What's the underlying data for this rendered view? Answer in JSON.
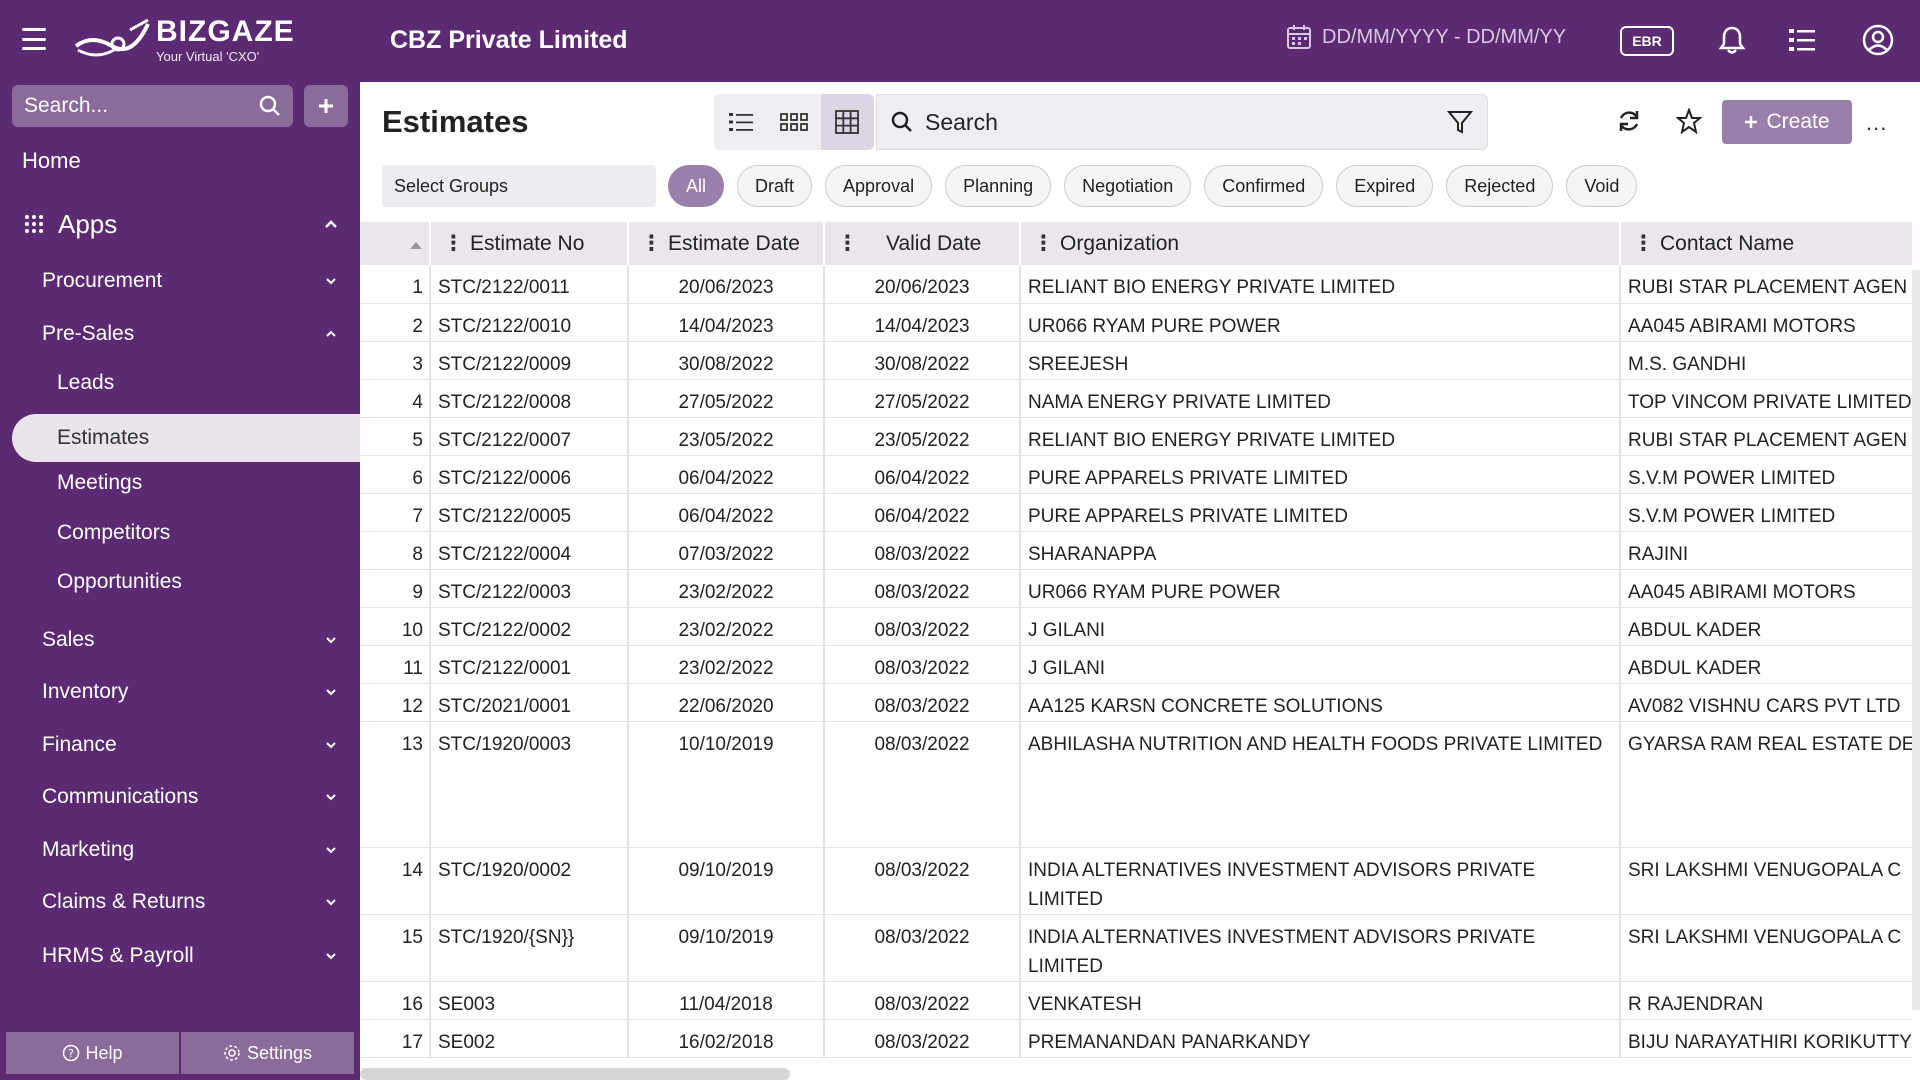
{
  "topbar": {
    "logo_name": "BIZGAZE",
    "logo_tagline": "Your Virtual 'CXO'",
    "company": "CBZ Private Limited",
    "date_placeholder": "DD/MM/YYYY - DD/MM/YY",
    "ebr_label": "EBR",
    "icons": [
      "menu-icon",
      "calendar-icon",
      "bell-icon",
      "list-icon",
      "user-icon"
    ]
  },
  "sidebar": {
    "search_placeholder": "Search...",
    "home": "Home",
    "apps": "Apps",
    "items": [
      {
        "label": "Procurement",
        "expanded": false
      },
      {
        "label": "Pre-Sales",
        "expanded": true
      },
      {
        "label": "Leads"
      },
      {
        "label": "Estimates",
        "selected": true
      },
      {
        "label": "Meetings"
      },
      {
        "label": "Competitors"
      },
      {
        "label": "Opportunities"
      },
      {
        "label": "Sales",
        "expanded": false
      },
      {
        "label": "Inventory",
        "expanded": false
      },
      {
        "label": "Finance",
        "expanded": false
      },
      {
        "label": "Communications",
        "expanded": false
      },
      {
        "label": "Marketing",
        "expanded": false
      },
      {
        "label": "Claims & Returns",
        "expanded": false
      },
      {
        "label": "HRMS & Payroll",
        "expanded": false
      }
    ],
    "help": "Help",
    "settings": "Settings"
  },
  "main": {
    "title": "Estimates",
    "search_placeholder": "Search",
    "create_label": "Create",
    "more_label": "...",
    "select_groups": "Select Groups",
    "filters": [
      "All",
      "Draft",
      "Approval",
      "Planning",
      "Negotiation",
      "Confirmed",
      "Expired",
      "Rejected",
      "Void"
    ],
    "active_filter": "All",
    "columns": [
      "Estimate No",
      "Estimate Date",
      "Valid Date",
      "Organization",
      "Contact Name"
    ],
    "rows": [
      {
        "n": "1",
        "no": "STC/2122/0011",
        "date": "20/06/2023",
        "valid": "20/06/2023",
        "org": "RELIANT BIO ENERGY PRIVATE LIMITED",
        "contact": "RUBI STAR PLACEMENT AGEN"
      },
      {
        "n": "2",
        "no": "STC/2122/0010",
        "date": "14/04/2023",
        "valid": "14/04/2023",
        "org": "UR066 RYAM PURE POWER",
        "contact": "AA045 ABIRAMI MOTORS"
      },
      {
        "n": "3",
        "no": "STC/2122/0009",
        "date": "30/08/2022",
        "valid": "30/08/2022",
        "org": "SREEJESH",
        "contact": "M.S. GANDHI"
      },
      {
        "n": "4",
        "no": "STC/2122/0008",
        "date": "27/05/2022",
        "valid": "27/05/2022",
        "org": "NAMA ENERGY PRIVATE LIMITED",
        "contact": "TOP VINCOM PRIVATE LIMITED"
      },
      {
        "n": "5",
        "no": "STC/2122/0007",
        "date": "23/05/2022",
        "valid": "23/05/2022",
        "org": "RELIANT BIO ENERGY PRIVATE LIMITED",
        "contact": "RUBI STAR PLACEMENT AGEN"
      },
      {
        "n": "6",
        "no": "STC/2122/0006",
        "date": "06/04/2022",
        "valid": "06/04/2022",
        "org": "PURE APPARELS PRIVATE LIMITED",
        "contact": "S.V.M POWER LIMITED"
      },
      {
        "n": "7",
        "no": "STC/2122/0005",
        "date": "06/04/2022",
        "valid": "06/04/2022",
        "org": "PURE APPARELS PRIVATE LIMITED",
        "contact": "S.V.M POWER LIMITED"
      },
      {
        "n": "8",
        "no": "STC/2122/0004",
        "date": "07/03/2022",
        "valid": "08/03/2022",
        "org": "SHARANAPPA",
        "contact": "RAJINI"
      },
      {
        "n": "9",
        "no": "STC/2122/0003",
        "date": "23/02/2022",
        "valid": "08/03/2022",
        "org": "UR066 RYAM PURE POWER",
        "contact": "AA045 ABIRAMI MOTORS"
      },
      {
        "n": "10",
        "no": "STC/2122/0002",
        "date": "23/02/2022",
        "valid": "08/03/2022",
        "org": "J GILANI",
        "contact": "ABDUL KADER"
      },
      {
        "n": "11",
        "no": "STC/2122/0001",
        "date": "23/02/2022",
        "valid": "08/03/2022",
        "org": "J GILANI",
        "contact": "ABDUL KADER"
      },
      {
        "n": "12",
        "no": "STC/2021/0001",
        "date": "22/06/2020",
        "valid": "08/03/2022",
        "org": "AA125 KARSN CONCRETE SOLUTIONS",
        "contact": "AV082 VISHNU CARS PVT LTD"
      },
      {
        "n": "13",
        "no": "STC/1920/0003",
        "date": "10/10/2019",
        "valid": "08/03/2022",
        "org": "ABHILASHA NUTRITION AND HEALTH FOODS PRIVATE LIMITED",
        "contact": "GYARSA RAM REAL ESTATE DE"
      },
      {
        "n": "14",
        "no": "STC/1920/0002",
        "date": "09/10/2019",
        "valid": "08/03/2022",
        "org": "INDIA ALTERNATIVES INVESTMENT ADVISORS PRIVATE LIMITED",
        "contact": "SRI LAKSHMI VENUGOPALA C"
      },
      {
        "n": "15",
        "no": "STC/1920/{SN}}",
        "date": "09/10/2019",
        "valid": "08/03/2022",
        "org": "INDIA ALTERNATIVES INVESTMENT ADVISORS PRIVATE LIMITED",
        "contact": "SRI LAKSHMI VENUGOPALA C"
      },
      {
        "n": "16",
        "no": "SE003",
        "date": "11/04/2018",
        "valid": "08/03/2022",
        "org": "VENKATESH",
        "contact": "R RAJENDRAN"
      },
      {
        "n": "17",
        "no": "SE002",
        "date": "16/02/2018",
        "valid": "08/03/2022",
        "org": "PREMANANDAN PANARKANDY",
        "contact": "BIJU NARAYATHIRI KORIKUTTY"
      }
    ]
  },
  "colors": {
    "brand": "#5c2a72",
    "accent": "#9a7fac",
    "selected": "#e9e4ec"
  }
}
